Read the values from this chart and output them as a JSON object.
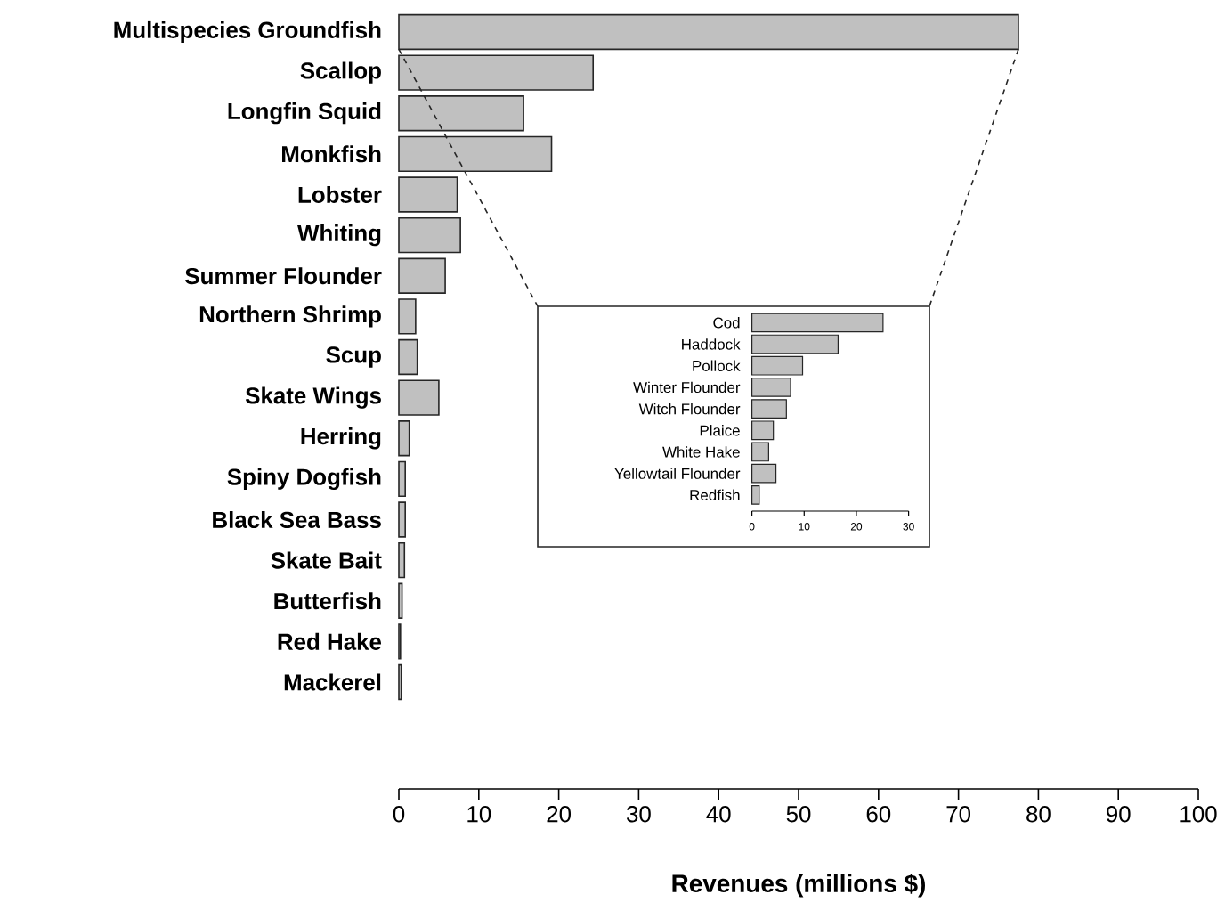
{
  "chart_data": [
    {
      "type": "bar",
      "orientation": "horizontal",
      "categories": [
        "Multispecies Groundfish",
        "Scallop",
        "Longfin Squid",
        "Monkfish",
        "Lobster",
        "Whiting",
        "Summer Flounder",
        "Northern Shrimp",
        "Scup",
        "Skate Wings",
        "Herring",
        "Spiny Dogfish",
        "Black Sea Bass",
        "Skate Bait",
        "Butterfish",
        "Red Hake",
        "Mackerel"
      ],
      "values": [
        77.5,
        24.3,
        15.6,
        19.1,
        7.3,
        7.7,
        5.8,
        2.1,
        2.3,
        5.0,
        1.3,
        0.8,
        0.8,
        0.7,
        0.4,
        0.2,
        0.3
      ],
      "color": "#c0c0c0",
      "xlim": [
        0,
        100
      ],
      "xticks": [
        0,
        10,
        20,
        30,
        40,
        50,
        60,
        70,
        80,
        90,
        100
      ],
      "xlabel": "Revenues (millions $)"
    },
    {
      "type": "bar",
      "orientation": "horizontal",
      "categories": [
        "Cod",
        "Haddock",
        "Pollock",
        "Winter Flounder",
        "Witch Flounder",
        "Plaice",
        "White Hake",
        "Yellowtail Flounder",
        "Redfish"
      ],
      "values": [
        25.1,
        16.5,
        9.7,
        7.4,
        6.6,
        4.1,
        3.2,
        4.6,
        1.4
      ],
      "color": "#c0c0c0",
      "xlim": [
        0,
        30
      ],
      "xticks": [
        0,
        10,
        20,
        30
      ]
    }
  ]
}
